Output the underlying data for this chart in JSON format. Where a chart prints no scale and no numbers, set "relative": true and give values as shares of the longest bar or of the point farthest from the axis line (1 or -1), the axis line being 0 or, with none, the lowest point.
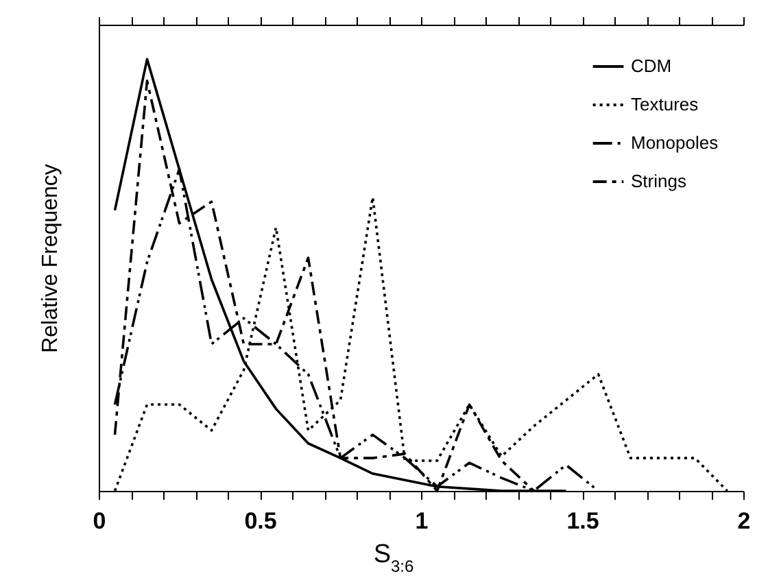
{
  "chart_data": {
    "type": "line",
    "relative": true,
    "xlabel": "S$_{3:6}$",
    "ylabel": "Relative Frequency",
    "x": [
      0.05,
      0.15,
      0.25,
      0.35,
      0.45,
      0.55,
      0.65,
      0.75,
      0.85,
      0.95,
      1.05,
      1.15,
      1.25,
      1.35,
      1.45,
      1.55,
      1.65,
      1.75,
      1.85,
      1.95
    ],
    "xlim": [
      0,
      2
    ],
    "xticks": [
      0,
      {
        "value": 0.1,
        "label": null
      },
      {
        "value": 0.2,
        "label": null
      },
      {
        "value": 0.3,
        "label": null
      },
      {
        "value": 0.4,
        "label": null
      },
      0.5,
      {
        "value": 0.6,
        "label": null
      },
      {
        "value": 0.7,
        "label": null
      },
      {
        "value": 0.8,
        "label": null
      },
      {
        "value": 0.9,
        "label": null
      },
      1,
      {
        "value": 1.1,
        "label": null
      },
      {
        "value": 1.2,
        "label": null
      },
      {
        "value": 1.3,
        "label": null
      },
      {
        "value": 1.4,
        "label": null
      },
      1.5,
      {
        "value": 1.6,
        "label": null
      },
      {
        "value": 1.7,
        "label": null
      },
      {
        "value": 1.8,
        "label": null
      },
      {
        "value": 1.9,
        "label": null
      },
      2
    ],
    "legend": "top right",
    "grid": false,
    "marker": "none",
    "series": [
      {
        "name": "CDM",
        "color": "#000000",
        "line_style": "solid",
        "values": [
          0.65,
          1,
          0.745,
          0.49,
          0.3,
          0.19,
          0.11,
          0.076,
          0.04,
          0.025,
          0.01,
          0.005,
          0,
          0,
          0,
          null,
          null,
          null,
          null,
          null
        ]
      },
      {
        "name": "Textures",
        "color": "#000000",
        "line_style": "dotted",
        "values": [
          0,
          0.2,
          0.2,
          0.14,
          0.28,
          0.61,
          0.14,
          0.21,
          0.68,
          0.07,
          0.07,
          0.2,
          0.08,
          0.15,
          0.21,
          0.27,
          0.076,
          0.076,
          0.076,
          0
        ]
      },
      {
        "name": "Monopoles",
        "color": "#000000",
        "line_style": "dashdot",
        "values": [
          0.2,
          0.53,
          0.745,
          0.34,
          0.4,
          0.34,
          0.27,
          0.076,
          0.13,
          0.076,
          0.01,
          0.065,
          0.03,
          0,
          0.06,
          0,
          null,
          null,
          null,
          null
        ]
      },
      {
        "name": "Strings",
        "color": "#000000",
        "line_style": "dashed",
        "values": [
          0.13,
          0.95,
          0.62,
          0.67,
          0.34,
          0.34,
          0.54,
          0.076,
          0.076,
          0.086,
          0,
          0.2,
          0.07,
          0,
          null,
          null,
          null,
          null,
          null,
          null
        ]
      }
    ]
  }
}
